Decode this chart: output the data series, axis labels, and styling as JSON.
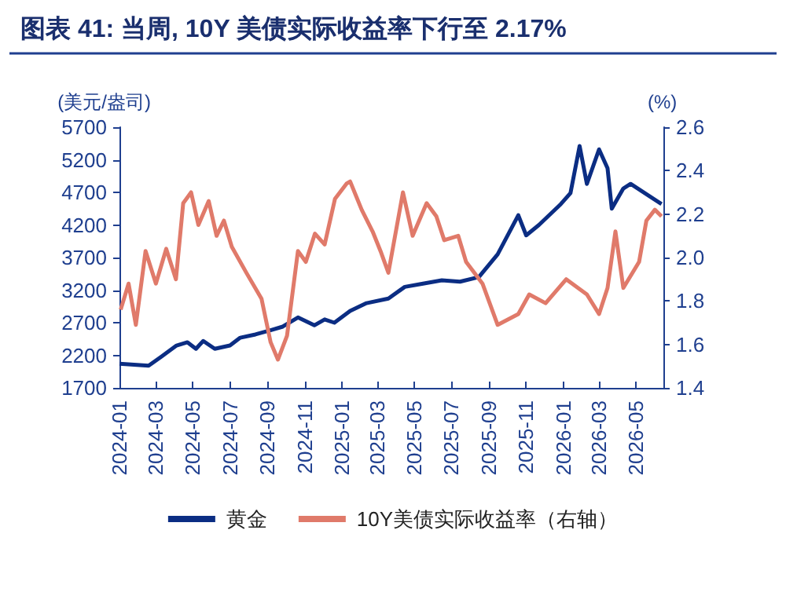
{
  "chart_data": {
    "type": "line",
    "title": "图表 41: 当周, 10Y 美债实际收益率下行至 2.17%",
    "ylabel": "(美元/盎司)",
    "y2label": "(%)",
    "xlim": [
      "2024-01-01",
      "2026-06-15"
    ],
    "xticks": [
      "2024-01",
      "2024-03",
      "2024-05",
      "2024-07",
      "2024-09",
      "2024-11",
      "2025-01",
      "2025-03",
      "2025-05",
      "2025-07",
      "2025-09",
      "2025-11",
      "2026-01",
      "2026-03",
      "2026-05"
    ],
    "ylim": [
      1700,
      5700
    ],
    "yticks": [
      1700,
      2200,
      2700,
      3200,
      3700,
      4200,
      4700,
      5200,
      5700
    ],
    "y2lim": [
      1.4,
      2.6
    ],
    "y2ticks": [
      1.4,
      1.6,
      1.8,
      {
        "value": 2,
        "label": "2.0"
      },
      2.2,
      2.4,
      2.6
    ],
    "legend": "bottom",
    "grid": false,
    "marker": "none",
    "series": [
      {
        "name": "黄金",
        "color": "#0b2d83",
        "x": [
          "2024-01-01",
          "2024-02-18",
          "2024-03-10",
          "2024-04-04",
          "2024-04-22",
          "2024-05-06",
          "2024-05-18",
          "2024-06-06",
          "2024-07-01",
          "2024-07-18",
          "2024-08-12",
          "2024-09-08",
          "2024-09-26",
          "2024-10-21",
          "2024-11-17",
          "2024-12-04",
          "2024-12-20",
          "2025-01-15",
          "2025-02-11",
          "2025-03-19",
          "2025-04-15",
          "2025-05-15",
          "2025-06-15",
          "2025-07-15",
          "2025-08-15",
          "2025-09-15",
          "2025-10-19",
          "2025-11-01",
          "2025-11-22",
          "2025-12-28",
          "2026-01-13",
          "2026-01-28",
          "2026-02-09",
          "2026-03-01",
          "2026-03-15",
          "2026-03-22",
          "2026-04-10",
          "2026-04-22",
          "2026-06-12"
        ],
        "values": [
          2070,
          2040,
          2180,
          2350,
          2400,
          2300,
          2420,
          2300,
          2350,
          2470,
          2520,
          2590,
          2640,
          2780,
          2660,
          2750,
          2700,
          2880,
          3000,
          3070,
          3250,
          3300,
          3350,
          3330,
          3400,
          3750,
          4350,
          4040,
          4200,
          4520,
          4690,
          5410,
          4830,
          5360,
          5070,
          4450,
          4760,
          4830,
          4520
        ]
      },
      {
        "name": "10Y美债实际收益率（右轴）",
        "color": "#e07a6a",
        "axis": "y2",
        "x": [
          "2024-01-03",
          "2024-01-16",
          "2024-01-28",
          "2024-02-13",
          "2024-03-01",
          "2024-03-18",
          "2024-04-03",
          "2024-04-15",
          "2024-04-28",
          "2024-05-10",
          "2024-05-27",
          "2024-06-09",
          "2024-06-21",
          "2024-07-04",
          "2024-07-28",
          "2024-08-22",
          "2024-09-06",
          "2024-09-18",
          "2024-10-03",
          "2024-10-21",
          "2024-11-03",
          "2024-11-18",
          "2024-12-04",
          "2024-12-21",
          "2025-01-09",
          "2025-01-15",
          "2025-02-03",
          "2025-02-21",
          "2025-03-06",
          "2025-03-19",
          "2025-04-12",
          "2025-04-28",
          "2025-05-21",
          "2025-06-06",
          "2025-06-19",
          "2025-07-12",
          "2025-07-25",
          "2025-08-21",
          "2025-09-15",
          "2025-10-19",
          "2025-11-06",
          "2025-12-03",
          "2026-01-06",
          "2026-02-09",
          "2026-03-01",
          "2026-03-15",
          "2026-03-28",
          "2026-04-10",
          "2026-05-06",
          "2026-05-18",
          "2026-06-01",
          "2026-06-12"
        ],
        "values": [
          1.76,
          1.88,
          1.69,
          2.03,
          1.88,
          2.04,
          1.9,
          2.25,
          2.3,
          2.15,
          2.26,
          2.1,
          2.17,
          2.05,
          1.93,
          1.81,
          1.61,
          1.53,
          1.64,
          2.03,
          1.98,
          2.11,
          2.06,
          2.27,
          2.34,
          2.35,
          2.22,
          2.12,
          2.03,
          1.93,
          2.3,
          2.1,
          2.25,
          2.19,
          2.08,
          2.1,
          1.98,
          1.88,
          1.69,
          1.74,
          1.83,
          1.79,
          1.9,
          1.83,
          1.74,
          1.86,
          2.12,
          1.86,
          1.98,
          2.17,
          2.22,
          2.19
        ]
      }
    ]
  }
}
